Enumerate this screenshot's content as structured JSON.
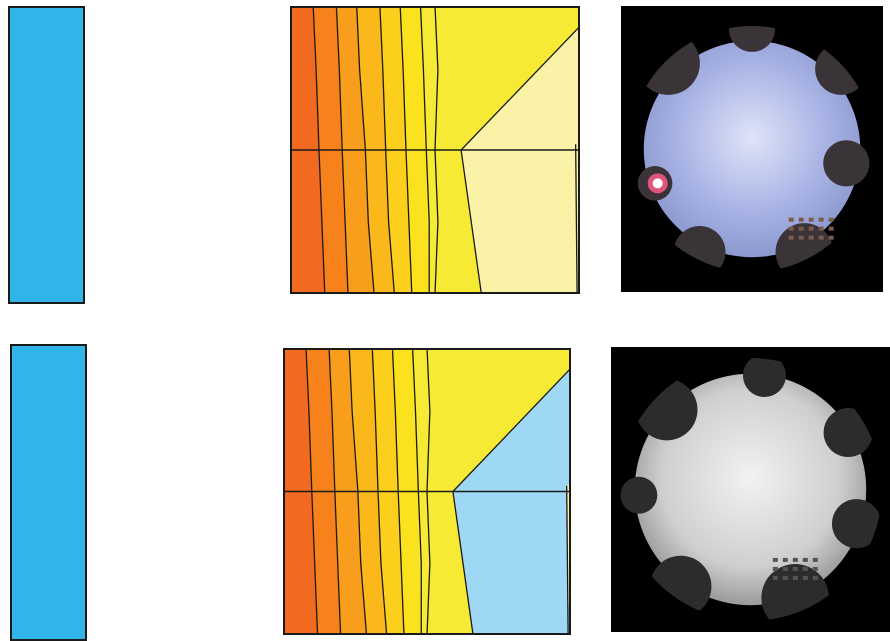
{
  "colors": {
    "bar": "#2fb5e8",
    "ring1": "#f26a1f",
    "ring2": "#f7821c",
    "ring3": "#f99d1c",
    "ring4": "#fbb81b",
    "ring5": "#fccf1c",
    "ring6": "#fbe21e",
    "ring7": "#f6ea34",
    "pale_yellow": "#faf2a6",
    "light_blue": "#9fd8f5",
    "contour_line": "#1a1a1a"
  },
  "rows": [
    {
      "bar": {
        "icon": "blue-bar-icon"
      },
      "contour_map": {
        "icon": "contour-map-icon",
        "right_zone": "pale_yellow"
      },
      "photo": {
        "icon": "fisheye-sky-photo-icon",
        "sky": "clear-blue-sun"
      }
    },
    {
      "bar": {
        "icon": "blue-bar-icon"
      },
      "contour_map": {
        "icon": "contour-map-icon",
        "right_zone": "light_blue"
      },
      "photo": {
        "icon": "fisheye-sky-photo-icon",
        "sky": "overcast-grey"
      }
    }
  ]
}
